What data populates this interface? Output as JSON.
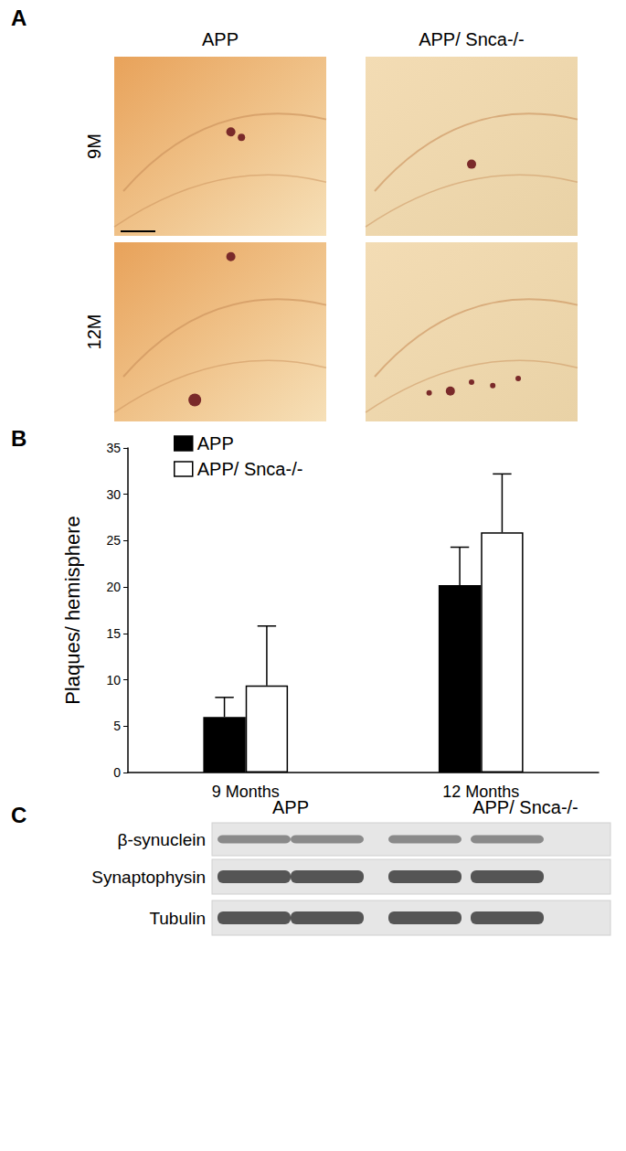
{
  "panel_labels": [
    "A",
    "B",
    "C"
  ],
  "panel_a": {
    "columns": [
      "APP",
      "APP/ Snca-/-"
    ],
    "rows": [
      "9M",
      "12M"
    ]
  },
  "chart_data": {
    "type": "bar",
    "categories": [
      "9 Months",
      "12 Months"
    ],
    "series": [
      {
        "name": "APP",
        "color": "#000000",
        "values": [
          6.0,
          20.2
        ],
        "errors": [
          2.1,
          4.1
        ]
      },
      {
        "name": "APP/ Snca-/-",
        "color": "#ffffff",
        "values": [
          9.4,
          25.9
        ],
        "errors": [
          6.4,
          6.3
        ]
      }
    ],
    "ylabel": "Plaques/ hemisphere",
    "ylim": [
      0,
      35
    ],
    "yticks": [
      0,
      5,
      10,
      15,
      20,
      25,
      30,
      35
    ],
    "grid": false,
    "legend": "upper left"
  },
  "panel_c": {
    "lanes": [
      "APP",
      "APP/ Snca-/-"
    ],
    "rows": [
      "β-synuclein",
      "Synaptophysin",
      "Tubulin"
    ]
  }
}
